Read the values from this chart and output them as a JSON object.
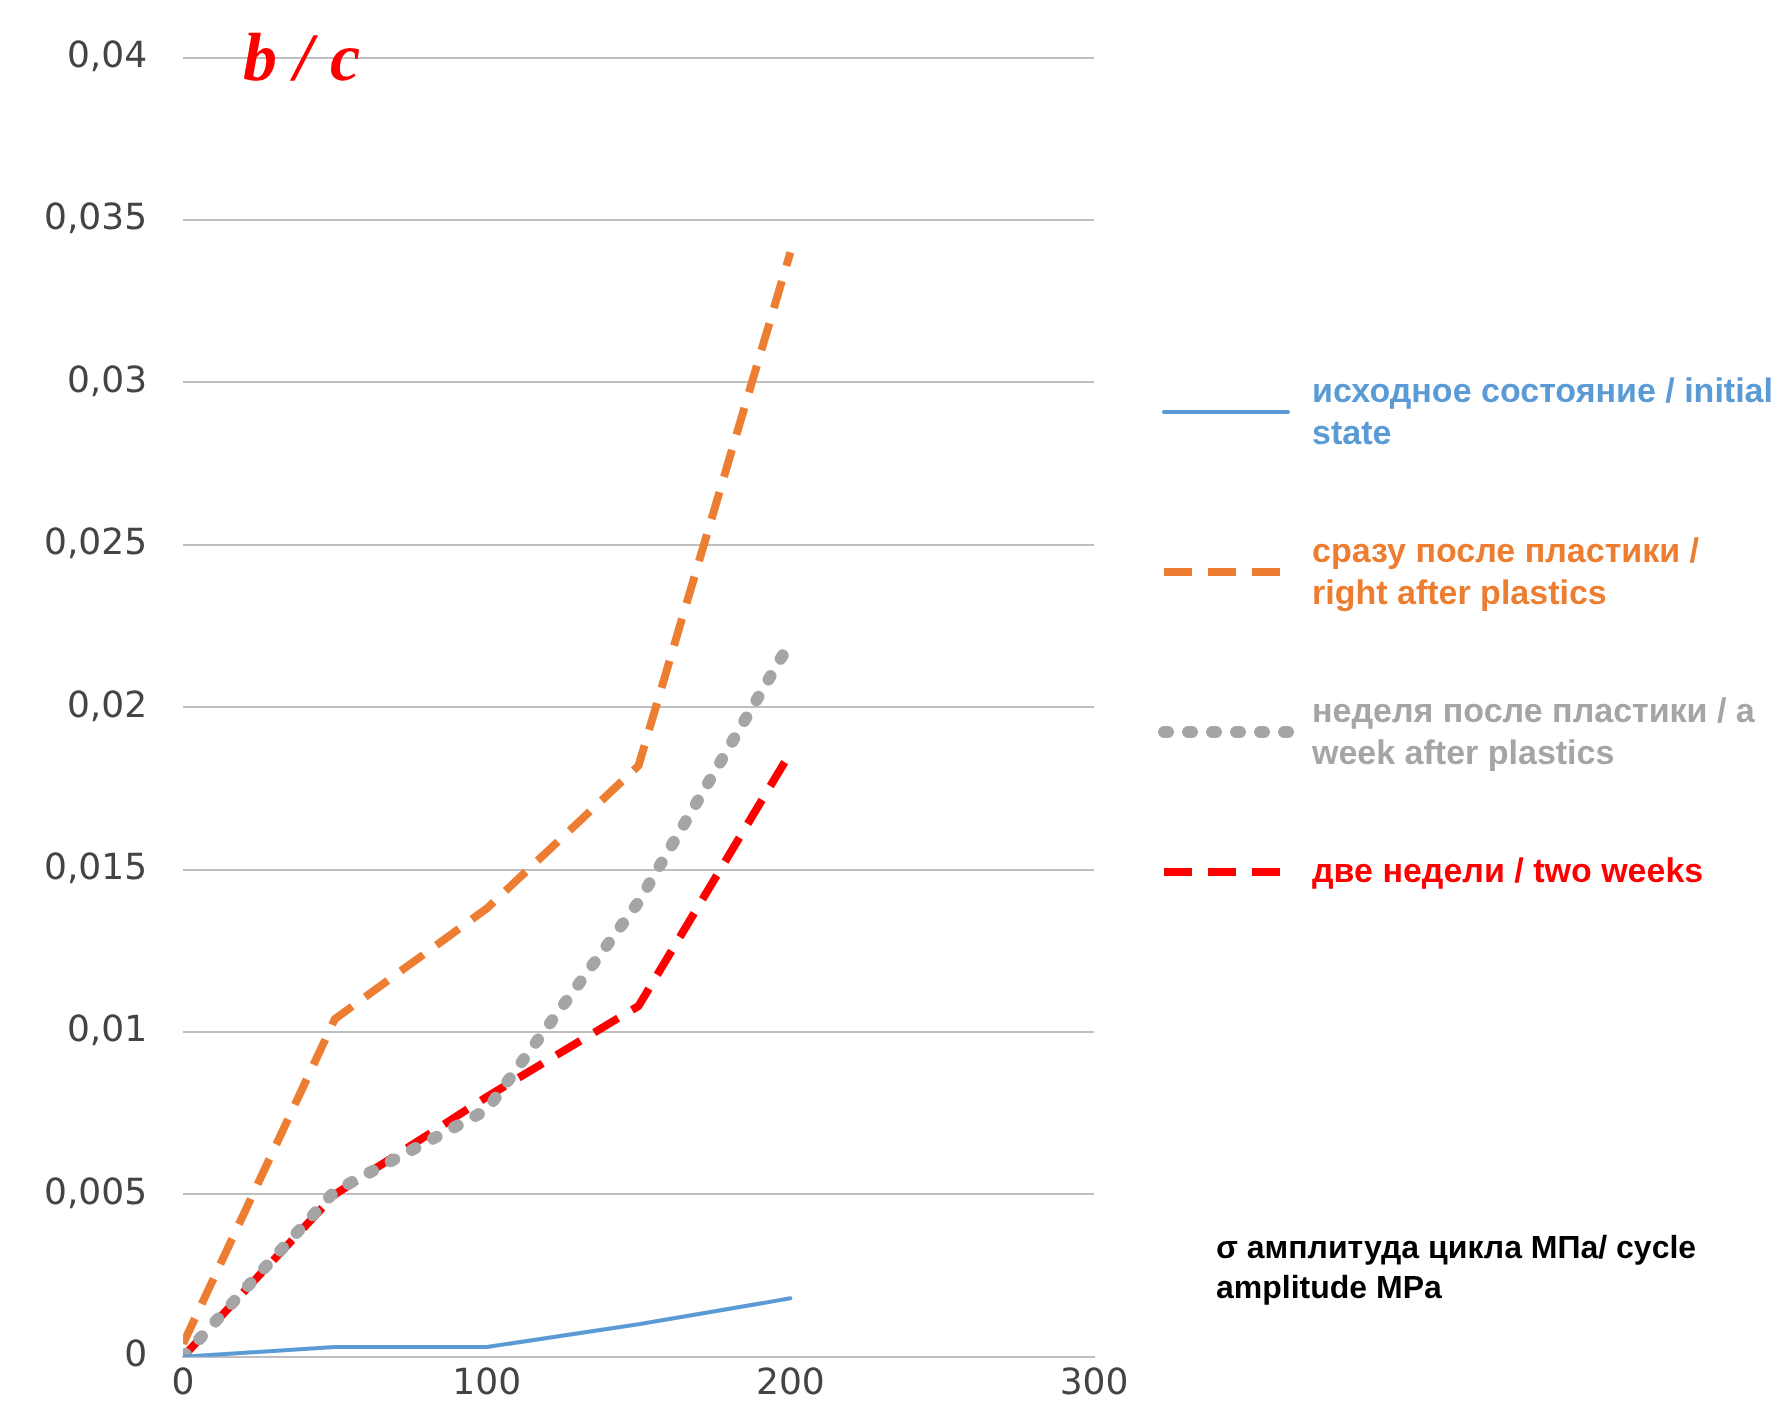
{
  "chart_data": {
    "type": "line",
    "title": "b / c",
    "xlabel": "σ амплитуда цикла МПа/ cycle amplitude MPa",
    "x": [
      0,
      50,
      100,
      150,
      200
    ],
    "series": [
      {
        "name": "исходное состояние / initial state",
        "color": "#5b9bd5",
        "line_style": "solid",
        "values": [
          0,
          0.0003,
          0.0003,
          0.001,
          0.0018
        ]
      },
      {
        "name": "сразу после пластики / right after plastics",
        "color": "#ed7d31",
        "line_style": "dashed",
        "values": [
          0.0004,
          0.0104,
          0.0138,
          0.0182,
          0.034
        ]
      },
      {
        "name": "неделя после пластики / a week after plastics",
        "color": "#a5a5a5",
        "line_style": "dotted",
        "values": [
          0,
          0.0051,
          0.0076,
          0.014,
          0.022
        ]
      },
      {
        "name": "две недели / two weeks",
        "color": "#ff0000",
        "line_style": "dashed",
        "values": [
          0,
          0.005,
          0.008,
          0.0108,
          0.0186
        ]
      }
    ],
    "xlim": [
      0,
      300
    ],
    "xticks": [
      0,
      100,
      200,
      300
    ],
    "ylim": [
      0,
      0.04
    ],
    "yticks": [
      {
        "value": 0,
        "label": "0"
      },
      {
        "value": 0.005,
        "label": "0,005"
      },
      {
        "value": 0.01,
        "label": "0,01"
      },
      {
        "value": 0.015,
        "label": "0,015"
      },
      {
        "value": 0.02,
        "label": "0,02"
      },
      {
        "value": 0.025,
        "label": "0,025"
      },
      {
        "value": 0.03,
        "label": "0,03"
      },
      {
        "value": 0.035,
        "label": "0,035"
      },
      {
        "value": 0.04,
        "label": "0,04"
      }
    ],
    "grid": "y",
    "legend": "right",
    "marker": "none"
  }
}
